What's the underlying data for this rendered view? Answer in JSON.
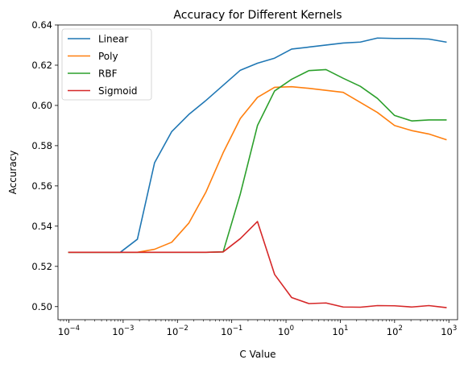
{
  "chart_data": {
    "type": "line",
    "title": "Accuracy for Different Kernels",
    "xlabel": "C Value",
    "ylabel": "Accuracy",
    "xscale": "log",
    "xlim": [
      6.31e-05,
      1445
    ],
    "ylim": [
      0.4935,
      0.64
    ],
    "grid": false,
    "legend_position": "top-left",
    "x": [
      0.0001,
      0.000207,
      0.000428,
      0.000886,
      0.00183,
      0.00379,
      0.00785,
      0.0162,
      0.0336,
      0.0695,
      0.144,
      0.298,
      0.616,
      1.27,
      2.64,
      5.46,
      11.3,
      23.4,
      48.3,
      100,
      207,
      428,
      886
    ],
    "series": [
      {
        "name": "Linear",
        "color": "#1f77b4",
        "values": [
          0.527,
          0.527,
          0.527,
          0.527,
          0.5335,
          0.5715,
          0.587,
          0.5955,
          0.6025,
          0.61,
          0.6175,
          0.621,
          0.6235,
          0.628,
          0.629,
          0.63,
          0.631,
          0.6315,
          0.6335,
          0.6333,
          0.6333,
          0.633,
          0.6315
        ]
      },
      {
        "name": "Poly",
        "color": "#ff7f0e",
        "values": [
          0.527,
          0.527,
          0.527,
          0.527,
          0.527,
          0.5285,
          0.532,
          0.5415,
          0.557,
          0.5765,
          0.5935,
          0.604,
          0.609,
          0.6093,
          0.6085,
          0.6075,
          0.6065,
          0.6015,
          0.5965,
          0.59,
          0.5875,
          0.5858,
          0.583
        ]
      },
      {
        "name": "RBF",
        "color": "#2ca02c",
        "values": [
          0.527,
          0.527,
          0.527,
          0.527,
          0.527,
          0.527,
          0.527,
          0.527,
          0.527,
          0.5272,
          0.556,
          0.59,
          0.6072,
          0.613,
          0.6173,
          0.6178,
          0.6135,
          0.6095,
          0.6035,
          0.595,
          0.5923,
          0.5928,
          0.5928
        ]
      },
      {
        "name": "Sigmoid",
        "color": "#d62728",
        "values": [
          0.527,
          0.527,
          0.527,
          0.527,
          0.527,
          0.527,
          0.527,
          0.527,
          0.527,
          0.5272,
          0.5338,
          0.5423,
          0.516,
          0.5045,
          0.5015,
          0.5018,
          0.4998,
          0.4997,
          0.5005,
          0.5004,
          0.4998,
          0.5005,
          0.4995
        ]
      }
    ],
    "y_ticks": [
      0.5,
      0.52,
      0.54,
      0.56,
      0.58,
      0.6,
      0.62,
      0.64
    ],
    "y_tick_labels": [
      "0.50",
      "0.52",
      "0.54",
      "0.56",
      "0.58",
      "0.60",
      "0.62",
      "0.64"
    ],
    "x_ticks": [
      0.0001,
      0.001,
      0.01,
      0.1,
      1,
      10,
      100,
      1000
    ],
    "x_tick_labels": [
      {
        "base": "10",
        "exp": "−4"
      },
      {
        "base": "10",
        "exp": "−3"
      },
      {
        "base": "10",
        "exp": "−2"
      },
      {
        "base": "10",
        "exp": "−1"
      },
      {
        "base": "10",
        "exp": "0"
      },
      {
        "base": "10",
        "exp": "1"
      },
      {
        "base": "10",
        "exp": "2"
      },
      {
        "base": "10",
        "exp": "3"
      }
    ]
  }
}
